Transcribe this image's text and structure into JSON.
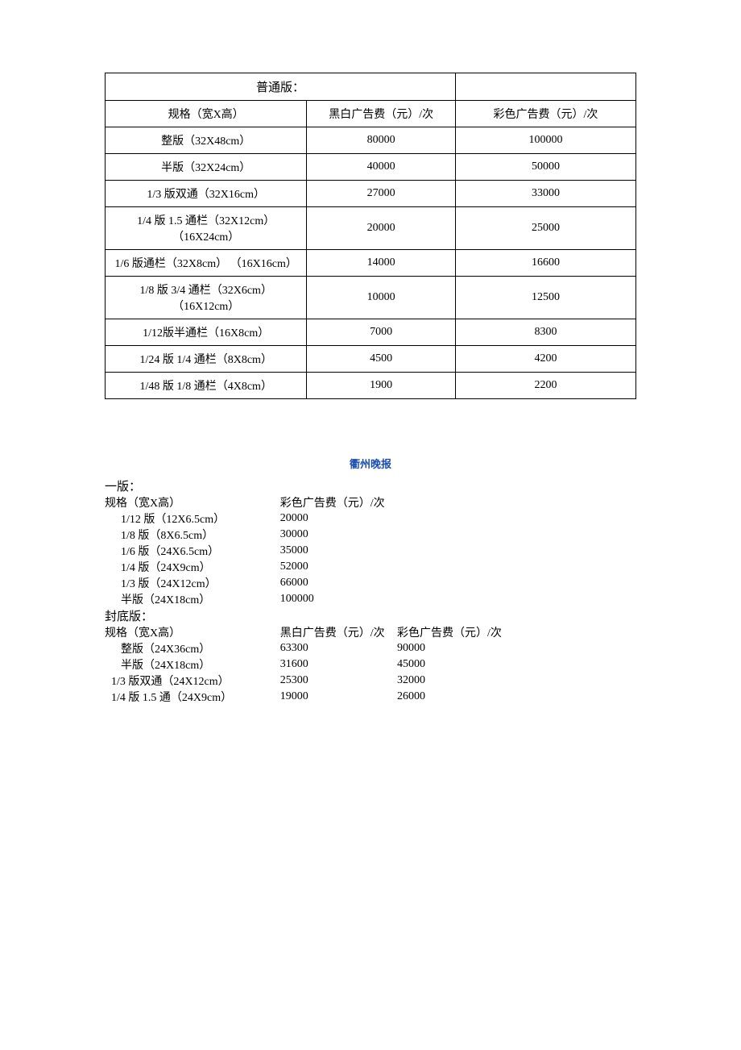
{
  "table1": {
    "section_title": "普通版：",
    "headers": {
      "spec": "规格（宽X高）",
      "bw": "黑白广告费（元）/次",
      "color": "彩色广告费（元）/次"
    },
    "rows": [
      {
        "spec": "整版（32X48cm）",
        "bw": "80000",
        "color": "100000",
        "tall": false
      },
      {
        "spec": "半版（32X24cm）",
        "bw": "40000",
        "color": "50000",
        "tall": false
      },
      {
        "spec": "1/3 版双通（32X16cm）",
        "bw": "27000",
        "color": "33000",
        "tall": false
      },
      {
        "spec": "1/4 版 1.5 通栏（32X12cm）（16X24cm）",
        "bw": "20000",
        "color": "25000",
        "tall": true
      },
      {
        "spec": "1/6 版通栏（32X8cm） （16X16cm）",
        "bw": "14000",
        "color": "16600",
        "tall": true
      },
      {
        "spec": "1/8 版 3/4 通栏（32X6cm）（16X12cm）",
        "bw": "10000",
        "color": "12500",
        "tall": true
      },
      {
        "spec": "1/12版半通栏（16X8cm）",
        "bw": "7000",
        "color": "8300",
        "tall": false
      },
      {
        "spec": "1/24 版 1/4 通栏（8X8cm）",
        "bw": "4500",
        "color": "4200",
        "tall": false
      },
      {
        "spec": "1/48 版 1/8 通栏（4X8cm）",
        "bw": "1900",
        "color": "2200",
        "tall": false
      }
    ],
    "col_widths": {
      "spec": "38%",
      "bw": "28%",
      "color": "34%"
    }
  },
  "newspaper_title": "衢州晚报",
  "table2": {
    "section1_title": "一版：",
    "section1_headers": {
      "spec": "规格（宽X高）",
      "color": "彩色广告费（元）/次"
    },
    "section1_rows": [
      {
        "spec": "1/12 版（12X6.5cm）",
        "color": "20000"
      },
      {
        "spec": "1/8 版（8X6.5cm）",
        "color": "30000"
      },
      {
        "spec": "1/6 版（24X6.5cm）",
        "color": "35000"
      },
      {
        "spec": "1/4 版（24X9cm）",
        "color": "52000"
      },
      {
        "spec": "1/3 版（24X12cm）",
        "color": "66000"
      },
      {
        "spec": "半版（24X18cm）",
        "color": "100000"
      }
    ],
    "section2_title": "封底版：",
    "section2_headers": {
      "spec": "规格（宽X高）",
      "bw": "黑白广告费（元）/次",
      "color": "彩色广告费（元）/次"
    },
    "section2_rows": [
      {
        "spec": "整版（24X36cm）",
        "bw": "63300",
        "color": "90000",
        "pad": true
      },
      {
        "spec": "半版（24X18cm）",
        "bw": "31600",
        "color": "45000",
        "pad": true
      },
      {
        "spec": "1/3 版双通（24X12cm）",
        "bw": "25300",
        "color": "32000",
        "pad": false
      },
      {
        "spec": "1/4 版 1.5 通（24X9cm）",
        "bw": "19000",
        "color": "26000",
        "pad": false
      }
    ],
    "col_widths": {
      "spec": "33%",
      "bw": "22%",
      "color": "45%"
    }
  }
}
